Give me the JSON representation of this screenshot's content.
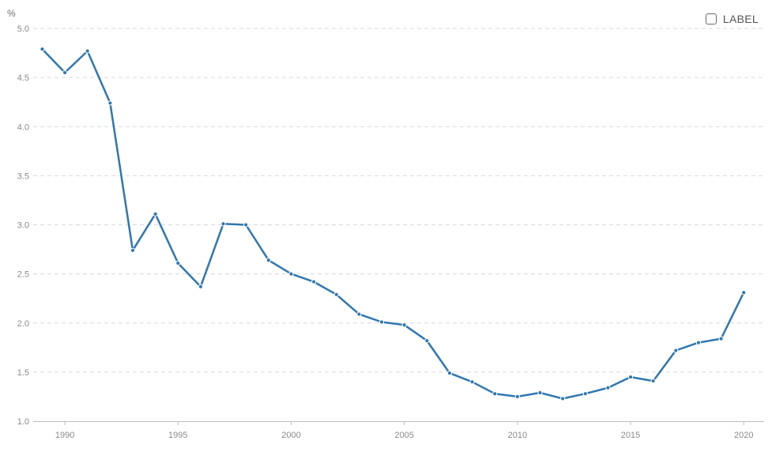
{
  "chart_data": {
    "type": "line",
    "unit_label": "%",
    "legend_label": "LABEL",
    "x": [
      1989,
      1990,
      1991,
      1992,
      1993,
      1994,
      1995,
      1996,
      1997,
      1998,
      1999,
      2000,
      2001,
      2002,
      2003,
      2004,
      2005,
      2006,
      2007,
      2008,
      2009,
      2010,
      2011,
      2012,
      2013,
      2014,
      2015,
      2016,
      2017,
      2018,
      2019,
      2020
    ],
    "series": [
      {
        "values": [
          4.79,
          4.55,
          4.77,
          4.24,
          2.74,
          3.11,
          2.61,
          2.37,
          3.01,
          3.0,
          2.64,
          2.5,
          2.42,
          2.29,
          2.09,
          2.01,
          1.98,
          1.82,
          1.49,
          1.4,
          1.28,
          1.25,
          1.29,
          1.23,
          1.28,
          1.34,
          1.45,
          1.41,
          1.72,
          1.8,
          1.84,
          2.31
        ],
        "color": "#2f77b1"
      }
    ],
    "ylim": [
      1.0,
      5.0
    ],
    "yticks": [
      "1.0",
      "1.5",
      "2.0",
      "2.5",
      "3.0",
      "3.5",
      "4.0",
      "4.5",
      "5.0"
    ],
    "xticks": [
      "1990",
      "1995",
      "2000",
      "2005",
      "2010",
      "2015",
      "2020"
    ],
    "xlim": [
      1988.6,
      2020.9
    ],
    "grid": true,
    "legend_position": "top-right"
  }
}
